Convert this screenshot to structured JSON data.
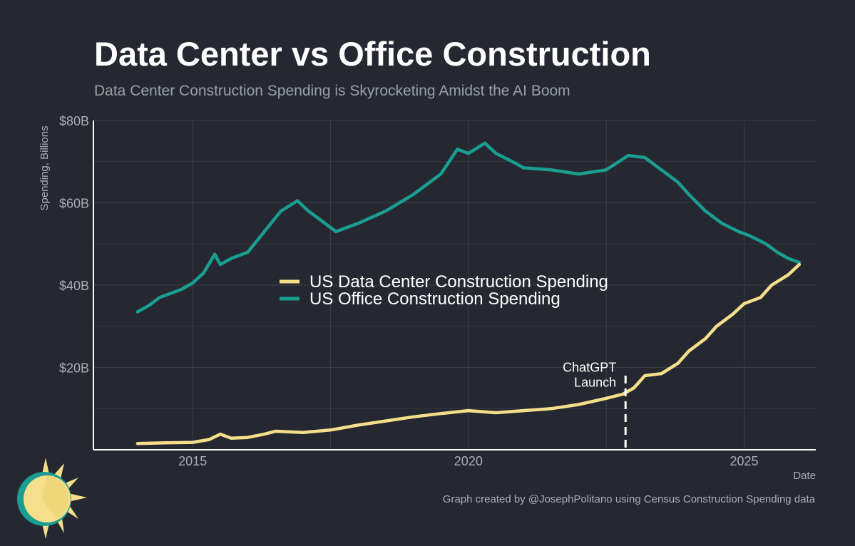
{
  "chart_data": {
    "type": "line",
    "title": "Data Center vs Office Construction",
    "subtitle": "Data Center Construction Spending is Skyrocketing Amidst the AI Boom",
    "xlabel": "Date",
    "ylabel": "Spending, Billions",
    "xlim": [
      2013.2,
      2026.3
    ],
    "ylim": [
      0,
      80
    ],
    "x_ticks": [
      {
        "value": 2015,
        "label": "2015"
      },
      {
        "value": 2020,
        "label": "2020"
      },
      {
        "value": 2025,
        "label": "2025"
      }
    ],
    "y_ticks": [
      {
        "value": 20,
        "label": "$20B"
      },
      {
        "value": 40,
        "label": "$40B"
      },
      {
        "value": 60,
        "label": "$60B"
      },
      {
        "value": 80,
        "label": "$80B"
      }
    ],
    "grid": true,
    "legend_position": "center",
    "series": [
      {
        "name": "US Data Center Construction Spending",
        "color": "#f5df8b",
        "x": [
          2014.0,
          2014.5,
          2015.0,
          2015.3,
          2015.5,
          2015.7,
          2016.0,
          2016.3,
          2016.5,
          2017.0,
          2017.5,
          2018.0,
          2018.5,
          2019.0,
          2019.5,
          2020.0,
          2020.5,
          2021.0,
          2021.5,
          2022.0,
          2022.5,
          2022.8,
          2023.0,
          2023.2,
          2023.5,
          2023.8,
          2024.0,
          2024.3,
          2024.5,
          2024.8,
          2025.0,
          2025.3,
          2025.5,
          2025.8,
          2026.0
        ],
        "values": [
          1.5,
          1.7,
          1.8,
          2.5,
          3.8,
          2.8,
          3.0,
          3.8,
          4.5,
          4.2,
          4.8,
          6.0,
          7.0,
          8.0,
          8.8,
          9.5,
          9.0,
          9.5,
          10.0,
          11.0,
          12.5,
          13.5,
          15.0,
          18.0,
          18.5,
          21.0,
          24.0,
          27.0,
          30.0,
          33.0,
          35.5,
          37.0,
          40.0,
          42.5,
          45.0
        ]
      },
      {
        "name": "US Office Construction Spending",
        "color": "#1a9e92",
        "x": [
          2014.0,
          2014.2,
          2014.4,
          2014.6,
          2014.8,
          2015.0,
          2015.2,
          2015.4,
          2015.5,
          2015.7,
          2016.0,
          2016.3,
          2016.6,
          2016.9,
          2017.1,
          2017.3,
          2017.6,
          2018.0,
          2018.5,
          2019.0,
          2019.5,
          2019.8,
          2020.0,
          2020.3,
          2020.5,
          2020.8,
          2021.0,
          2021.5,
          2022.0,
          2022.5,
          2022.9,
          2023.2,
          2023.5,
          2023.8,
          2024.0,
          2024.3,
          2024.6,
          2024.9,
          2025.1,
          2025.4,
          2025.6,
          2025.8,
          2026.0
        ],
        "values": [
          33.5,
          35.0,
          37.0,
          38.0,
          39.0,
          40.5,
          43.0,
          47.5,
          45.0,
          46.5,
          48.0,
          53.0,
          58.0,
          60.5,
          58.0,
          56.0,
          53.0,
          55.0,
          58.0,
          62.0,
          67.0,
          73.0,
          72.0,
          74.5,
          72.0,
          70.0,
          68.5,
          68.0,
          67.0,
          68.0,
          71.5,
          71.0,
          68.0,
          65.0,
          62.0,
          58.0,
          55.0,
          53.0,
          52.0,
          50.0,
          48.0,
          46.5,
          45.5
        ]
      }
    ],
    "annotations": [
      {
        "x": 2022.85,
        "label_line1": "ChatGPT",
        "label_line2": "Launch",
        "style": "dashed-vertical"
      }
    ]
  },
  "source_note": "Graph created by @JosephPolitano using Census Construction Spending data",
  "colors": {
    "background": "#252830",
    "grid": "#3a3e47",
    "axis": "#ffffff",
    "tick_label": "#a8adb6",
    "data_center": "#f5df8b",
    "office": "#1a9e92",
    "logo_sun": "#f5df8b",
    "logo_ring": "#1a9e92"
  }
}
